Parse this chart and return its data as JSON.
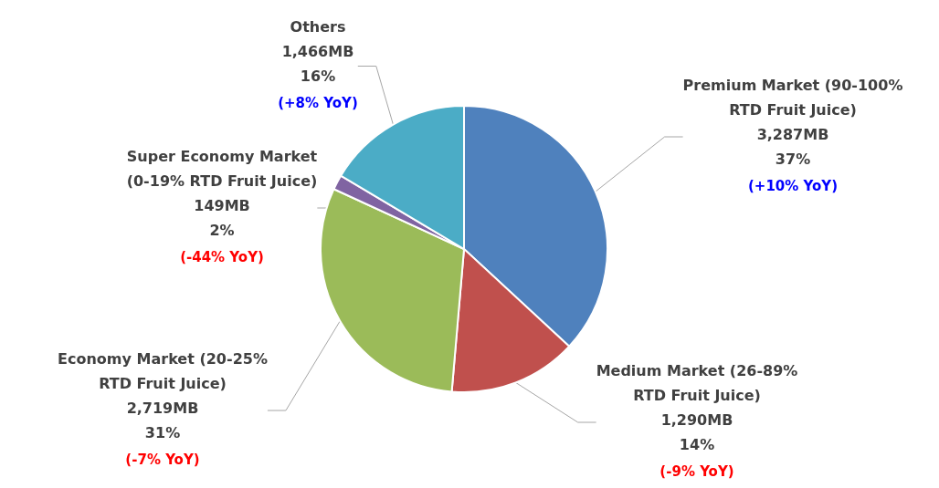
{
  "chart_data": {
    "type": "pie",
    "categories": [
      "Premium Market (90-100% RTD Fruit Juice)",
      "Medium Market (26-89% RTD Fruit Juice)",
      "Economy Market (20-25% RTD Fruit Juice)",
      "Super Economy Market (0-19% RTD Fruit Juice)",
      "Others"
    ],
    "values": [
      3287,
      1290,
      2719,
      149,
      1466
    ],
    "colors": [
      "#4f81bd",
      "#c0504d",
      "#9bbb59",
      "#8064a2",
      "#4bacc6"
    ],
    "value_labels": [
      "3,287MB\n37%",
      "1,290MB\n14%",
      "2,719MB\n31%",
      "149MB\n2%",
      "1,466MB\n16%"
    ],
    "annotations": [
      "(+10% YoY)",
      "(-9% YoY)",
      "(-7% YoY)",
      "(-44% YoY)",
      "(+8% YoY)"
    ],
    "legend": false
  }
}
